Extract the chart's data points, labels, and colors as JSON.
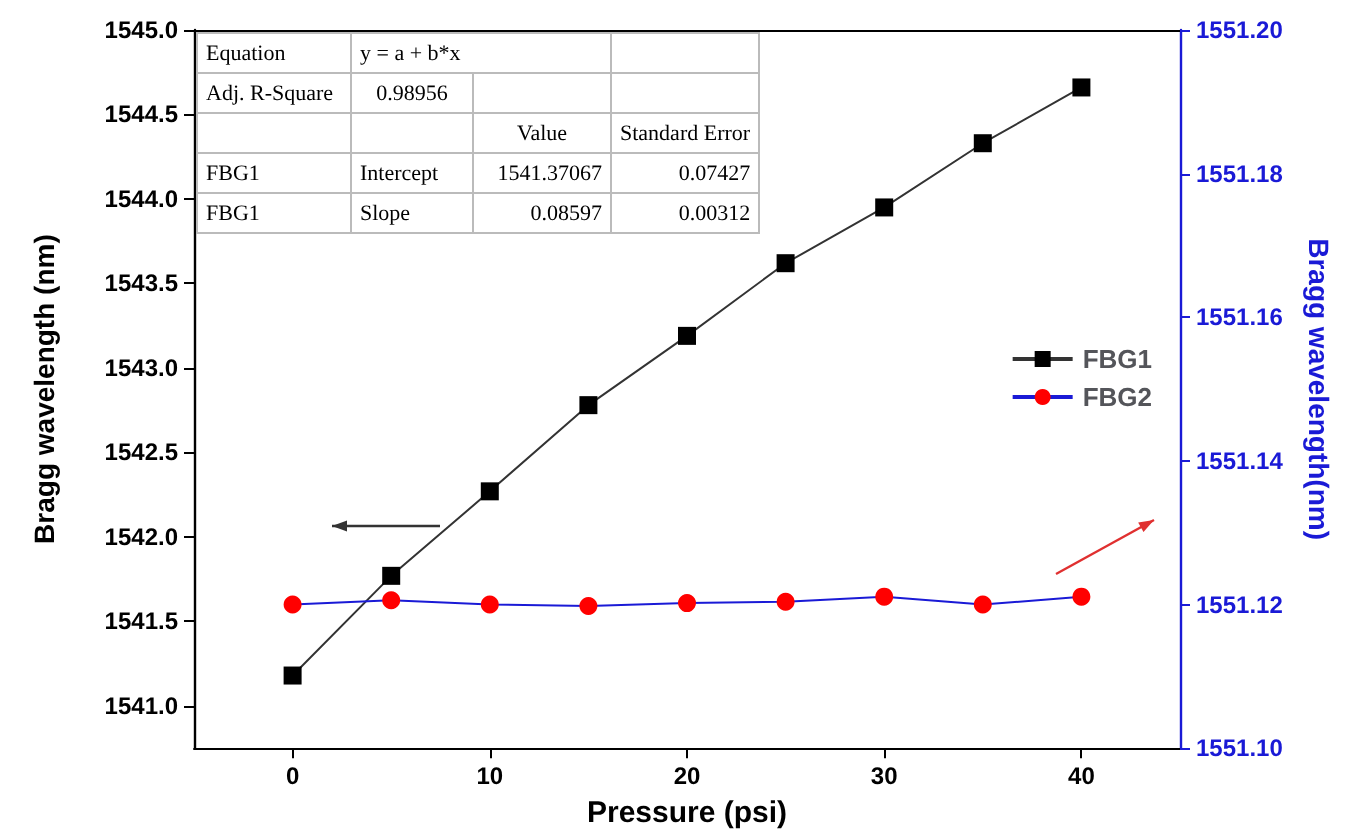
{
  "chart_data": {
    "type": "line",
    "xlabel": "Pressure (psi)",
    "ylabel": "Bragg wavelength (nm)",
    "y2label": "Bragg wavelength(nm)",
    "x": [
      0,
      5,
      10,
      15,
      20,
      25,
      30,
      35,
      40
    ],
    "series": [
      {
        "name": "FBG1",
        "color": "#000000",
        "marker": "square",
        "values": [
          1541.18,
          1541.77,
          1542.27,
          1542.78,
          1543.19,
          1543.62,
          1543.95,
          1544.33,
          1544.66
        ]
      },
      {
        "name": "FBG2",
        "color": "#ff0000",
        "marker": "circle",
        "axis": "y2",
        "values": [
          1551.12,
          1551.1206,
          1551.12,
          1551.1198,
          1551.1202,
          1551.1204,
          1551.1211,
          1551.12,
          1551.1211
        ]
      }
    ],
    "xlim": [
      -5,
      45
    ],
    "xticks": [
      0,
      10,
      20,
      30,
      40
    ],
    "ylim": [
      1540.75,
      1545
    ],
    "yticks": [
      {
        "value": 1541,
        "label": "1541.0"
      },
      {
        "value": 1541.5,
        "label": "1541.5"
      },
      {
        "value": 1542,
        "label": "1542.0"
      },
      {
        "value": 1542.5,
        "label": "1542.5"
      },
      {
        "value": 1543,
        "label": "1543.0"
      },
      {
        "value": 1543.5,
        "label": "1543.5"
      },
      {
        "value": 1544,
        "label": "1544.0"
      },
      {
        "value": 1544.5,
        "label": "1544.5"
      },
      {
        "value": 1545,
        "label": "1545.0"
      }
    ],
    "y2lim": [
      1551.1,
      1551.2
    ],
    "y2ticks": [
      {
        "value": 1551.1,
        "label": "1551.10"
      },
      {
        "value": 1551.12,
        "label": "1551.12"
      },
      {
        "value": 1551.14,
        "label": "1551.14"
      },
      {
        "value": 1551.16,
        "label": "1551.16"
      },
      {
        "value": 1551.18,
        "label": "1551.18"
      },
      {
        "value": 1551.2,
        "label": "1551.20"
      }
    ],
    "annotations": [
      "Equation",
      "y = a + b*x",
      "Adj. R-Square",
      "0.98956",
      "Value",
      "Standard Error",
      "FBG1",
      "Intercept",
      "1541.37067",
      "0.07427",
      "FBG1",
      "Slope",
      "0.08597",
      "0.00312"
    ],
    "legend": "right",
    "grid": false,
    "line_style": "solid"
  }
}
